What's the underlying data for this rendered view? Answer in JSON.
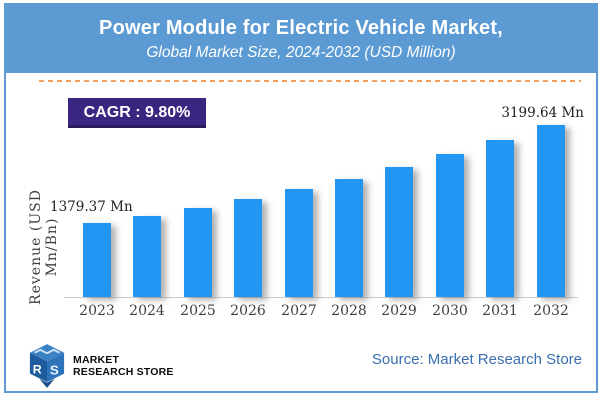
{
  "header": {
    "title": "Power Module for Electric Vehicle Market,",
    "subtitle": "Global Market Size, 2024-2032 (USD Million)"
  },
  "cagr": {
    "text": "CAGR : 9.80%"
  },
  "chart_data": {
    "type": "bar",
    "title": "Power Module for Electric Vehicle Market, Global Market Size, 2024-2032 (USD Million)",
    "ylabel": "Revenue (USD Mn/Bn)",
    "xlabel": "",
    "categories": [
      "2023",
      "2024",
      "2025",
      "2026",
      "2027",
      "2028",
      "2029",
      "2030",
      "2031",
      "2032"
    ],
    "values": [
      1379.37,
      1514.55,
      1662.97,
      1825.94,
      2004.89,
      2201.37,
      2417.1,
      2653.98,
      2914.07,
      3199.64
    ],
    "cagr_percent": 9.8,
    "annotations": {
      "first_bar": "1379.37 Mn",
      "last_bar": "3199.64 Mn"
    },
    "value_axis": {
      "visible": false,
      "min": 0
    },
    "grid": false,
    "legend": "none",
    "bar_color": "#2196f3"
  },
  "footer": {
    "source": "Source: Market Research Store",
    "logo_line1": "MARKET",
    "logo_line2": "RESEARCH STORE"
  },
  "colors": {
    "header_bg": "#5b9ad2",
    "frame_border": "#5d9bd3",
    "cagr_bg": "#3a2680",
    "dashed_divider": "#f0a35e",
    "bar": "#2196f3",
    "source_text": "#3a6fae"
  }
}
